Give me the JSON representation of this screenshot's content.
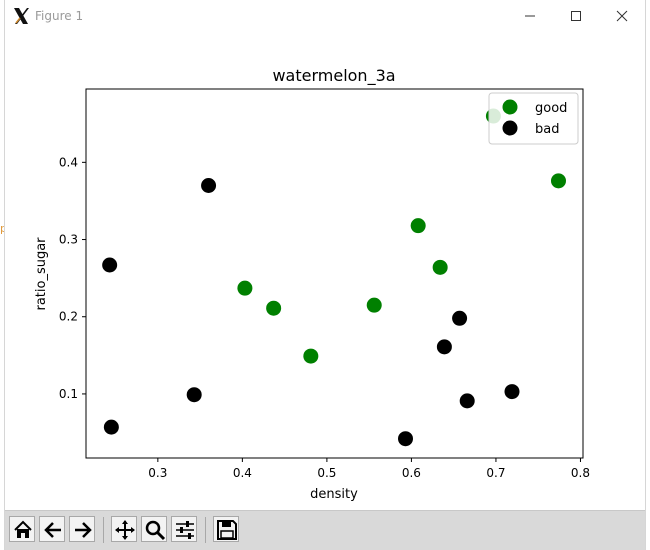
{
  "window": {
    "title": "Figure 1"
  },
  "edge_glyph": "p",
  "chart_data": {
    "type": "scatter",
    "title": "watermelon_3a",
    "xlabel": "density",
    "ylabel": "ratio_sugar",
    "xlim": [
      0.215,
      0.803
    ],
    "ylim": [
      0.017,
      0.495
    ],
    "xticks": [
      0.3,
      0.4,
      0.5,
      0.6,
      0.7,
      0.8
    ],
    "yticks": [
      0.1,
      0.2,
      0.3,
      0.4
    ],
    "xtick_labels": [
      "0.3",
      "0.4",
      "0.5",
      "0.6",
      "0.7",
      "0.8"
    ],
    "ytick_labels": [
      "0.1",
      "0.2",
      "0.3",
      "0.4"
    ],
    "legend_position": "top-right",
    "series": [
      {
        "name": "good",
        "color": "#008000",
        "points": [
          [
            0.697,
            0.46
          ],
          [
            0.774,
            0.376
          ],
          [
            0.634,
            0.264
          ],
          [
            0.608,
            0.318
          ],
          [
            0.556,
            0.215
          ],
          [
            0.403,
            0.237
          ],
          [
            0.481,
            0.149
          ],
          [
            0.437,
            0.211
          ]
        ]
      },
      {
        "name": "bad",
        "color": "#000000",
        "points": [
          [
            0.666,
            0.091
          ],
          [
            0.243,
            0.267
          ],
          [
            0.245,
            0.057
          ],
          [
            0.343,
            0.099
          ],
          [
            0.639,
            0.161
          ],
          [
            0.657,
            0.198
          ],
          [
            0.36,
            0.37
          ],
          [
            0.593,
            0.042
          ],
          [
            0.719,
            0.103
          ]
        ]
      }
    ]
  },
  "toolbar": {
    "items": [
      {
        "name": "home-button",
        "icon": "home-icon"
      },
      {
        "name": "back-button",
        "icon": "arrow-left-icon"
      },
      {
        "name": "forward-button",
        "icon": "arrow-right-icon"
      },
      {
        "name": "pan-button",
        "icon": "move-icon"
      },
      {
        "name": "zoom-button",
        "icon": "zoom-icon"
      },
      {
        "name": "configure-subplots-button",
        "icon": "sliders-icon"
      },
      {
        "name": "save-button",
        "icon": "save-icon"
      }
    ]
  }
}
